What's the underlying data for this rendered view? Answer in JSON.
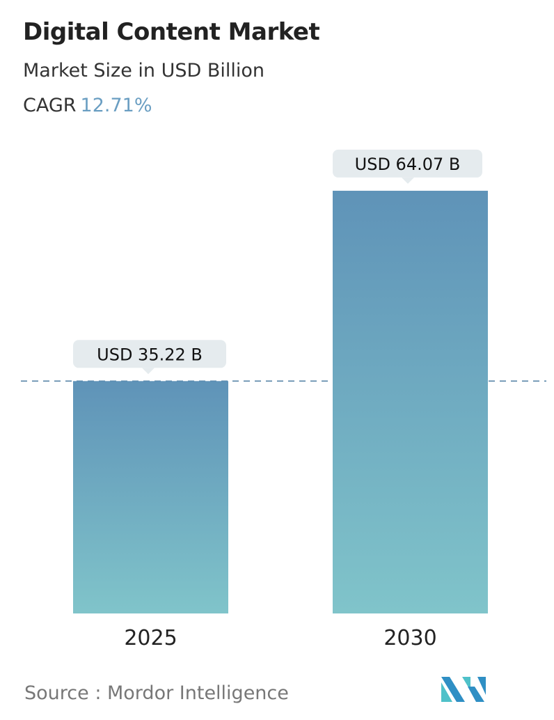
{
  "title": "Digital Content Market",
  "subtitle": "Market Size in USD Billion",
  "cagr_label": "CAGR",
  "cagr_value": "12.71%",
  "source": "Source :  Mordor Intelligence",
  "logo_text": "Mordor Intelligence",
  "colors": {
    "bar_top": "#5f93b8",
    "bar_bottom": "#80c4ca",
    "label_bg": "#e5ebee",
    "cagr": "#6a9ec2",
    "dash": "#4f7fa3"
  },
  "chart_data": {
    "type": "bar",
    "categories": [
      "2025",
      "2030"
    ],
    "values": [
      35.22,
      64.07
    ],
    "data_labels": [
      "USD 35.22 B",
      "USD 64.07 B"
    ],
    "ylabel": "",
    "xlabel": "",
    "grid": false,
    "reference_line": 35.22
  }
}
